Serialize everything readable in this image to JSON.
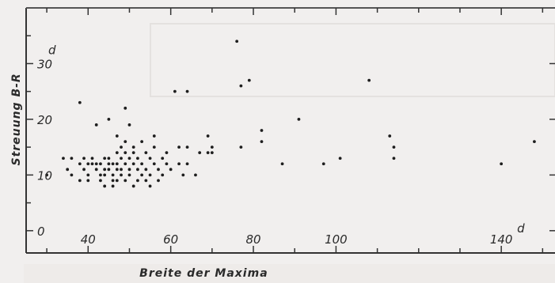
{
  "chart_data": {
    "type": "scatter",
    "title": "",
    "xlabel": "Breite der Maxima",
    "ylabel": "Streuung  B-R",
    "x_unit": "d",
    "y_unit": "d",
    "xlim": [
      25,
      153
    ],
    "ylim": [
      -4,
      40
    ],
    "x_ticks": [
      40,
      60,
      80,
      100,
      140
    ],
    "y_ticks": [
      0,
      10,
      20,
      30
    ],
    "grid": false,
    "points": [
      [
        30,
        10
      ],
      [
        34,
        13
      ],
      [
        35,
        11
      ],
      [
        36,
        13
      ],
      [
        36,
        10
      ],
      [
        38,
        23
      ],
      [
        38,
        9
      ],
      [
        38,
        12
      ],
      [
        39,
        11
      ],
      [
        39,
        13
      ],
      [
        40,
        12
      ],
      [
        40,
        10
      ],
      [
        40,
        9
      ],
      [
        41,
        12
      ],
      [
        41,
        13
      ],
      [
        42,
        11
      ],
      [
        42,
        19
      ],
      [
        42,
        12
      ],
      [
        43,
        10
      ],
      [
        43,
        9
      ],
      [
        43,
        12
      ],
      [
        44,
        13
      ],
      [
        44,
        11
      ],
      [
        44,
        10
      ],
      [
        44,
        8
      ],
      [
        45,
        12
      ],
      [
        45,
        13
      ],
      [
        45,
        20
      ],
      [
        45,
        11
      ],
      [
        46,
        9
      ],
      [
        46,
        12
      ],
      [
        46,
        10
      ],
      [
        46,
        8
      ],
      [
        47,
        14
      ],
      [
        47,
        11
      ],
      [
        47,
        12
      ],
      [
        47,
        17
      ],
      [
        47,
        9
      ],
      [
        48,
        15
      ],
      [
        48,
        13
      ],
      [
        48,
        11
      ],
      [
        48,
        10
      ],
      [
        49,
        16
      ],
      [
        49,
        12
      ],
      [
        49,
        22
      ],
      [
        49,
        14
      ],
      [
        49,
        9
      ],
      [
        50,
        13
      ],
      [
        50,
        11
      ],
      [
        50,
        19
      ],
      [
        50,
        10
      ],
      [
        51,
        15
      ],
      [
        51,
        12
      ],
      [
        51,
        8
      ],
      [
        51,
        14
      ],
      [
        52,
        11
      ],
      [
        52,
        13
      ],
      [
        52,
        9
      ],
      [
        53,
        10
      ],
      [
        53,
        16
      ],
      [
        53,
        12
      ],
      [
        54,
        14
      ],
      [
        54,
        11
      ],
      [
        54,
        9
      ],
      [
        55,
        13
      ],
      [
        55,
        10
      ],
      [
        55,
        8
      ],
      [
        56,
        12
      ],
      [
        56,
        15
      ],
      [
        56,
        17
      ],
      [
        57,
        11
      ],
      [
        57,
        9
      ],
      [
        58,
        13
      ],
      [
        58,
        10
      ],
      [
        59,
        12
      ],
      [
        59,
        14
      ],
      [
        60,
        11
      ],
      [
        61,
        25
      ],
      [
        62,
        15
      ],
      [
        62,
        12
      ],
      [
        63,
        10
      ],
      [
        64,
        25
      ],
      [
        64,
        15
      ],
      [
        64,
        12
      ],
      [
        66,
        10
      ],
      [
        67,
        14
      ],
      [
        69,
        17
      ],
      [
        69,
        14
      ],
      [
        70,
        15
      ],
      [
        70,
        14
      ],
      [
        76,
        34
      ],
      [
        77,
        26
      ],
      [
        77,
        15
      ],
      [
        79,
        27
      ],
      [
        82,
        16
      ],
      [
        82,
        18
      ],
      [
        87,
        12
      ],
      [
        91,
        20
      ],
      [
        97,
        12
      ],
      [
        101,
        13
      ],
      [
        108,
        27
      ],
      [
        113,
        17
      ],
      [
        114,
        15
      ],
      [
        114,
        13
      ],
      [
        140,
        12
      ],
      [
        148,
        16
      ]
    ]
  }
}
